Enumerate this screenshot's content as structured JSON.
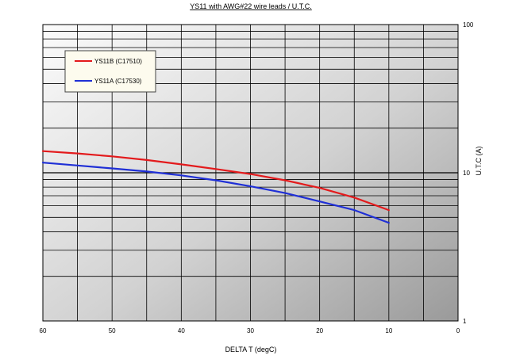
{
  "chart_data": {
    "type": "line",
    "title": "YS11 with AWG#22 wire leads /  U.T.C.",
    "xlabel": "DELTA T (degC)",
    "ylabel": "U.T.C (A)",
    "xlim": [
      60,
      0
    ],
    "x_reversed": true,
    "ylim": [
      1,
      100
    ],
    "y_scale": "log",
    "x_ticks": [
      "60",
      "50",
      "40",
      "30",
      "20",
      "10",
      "0"
    ],
    "y_ticks": [
      "1",
      "10",
      "100"
    ],
    "grid": true,
    "legend_position": "top-left",
    "series": [
      {
        "name": "YS11B (C17510)",
        "color": "#e31a1c",
        "x": [
          60,
          55,
          50,
          45,
          40,
          35,
          30,
          25,
          20,
          15,
          10
        ],
        "y": [
          14.0,
          13.5,
          12.9,
          12.2,
          11.4,
          10.6,
          9.8,
          8.9,
          7.9,
          6.8,
          5.6
        ]
      },
      {
        "name": "YS11A (C17530)",
        "color": "#1f2fd6",
        "x": [
          60,
          55,
          50,
          45,
          40,
          35,
          30,
          25,
          20,
          15,
          10
        ],
        "y": [
          11.7,
          11.2,
          10.7,
          10.2,
          9.6,
          8.9,
          8.1,
          7.3,
          6.4,
          5.6,
          4.6
        ]
      }
    ]
  }
}
